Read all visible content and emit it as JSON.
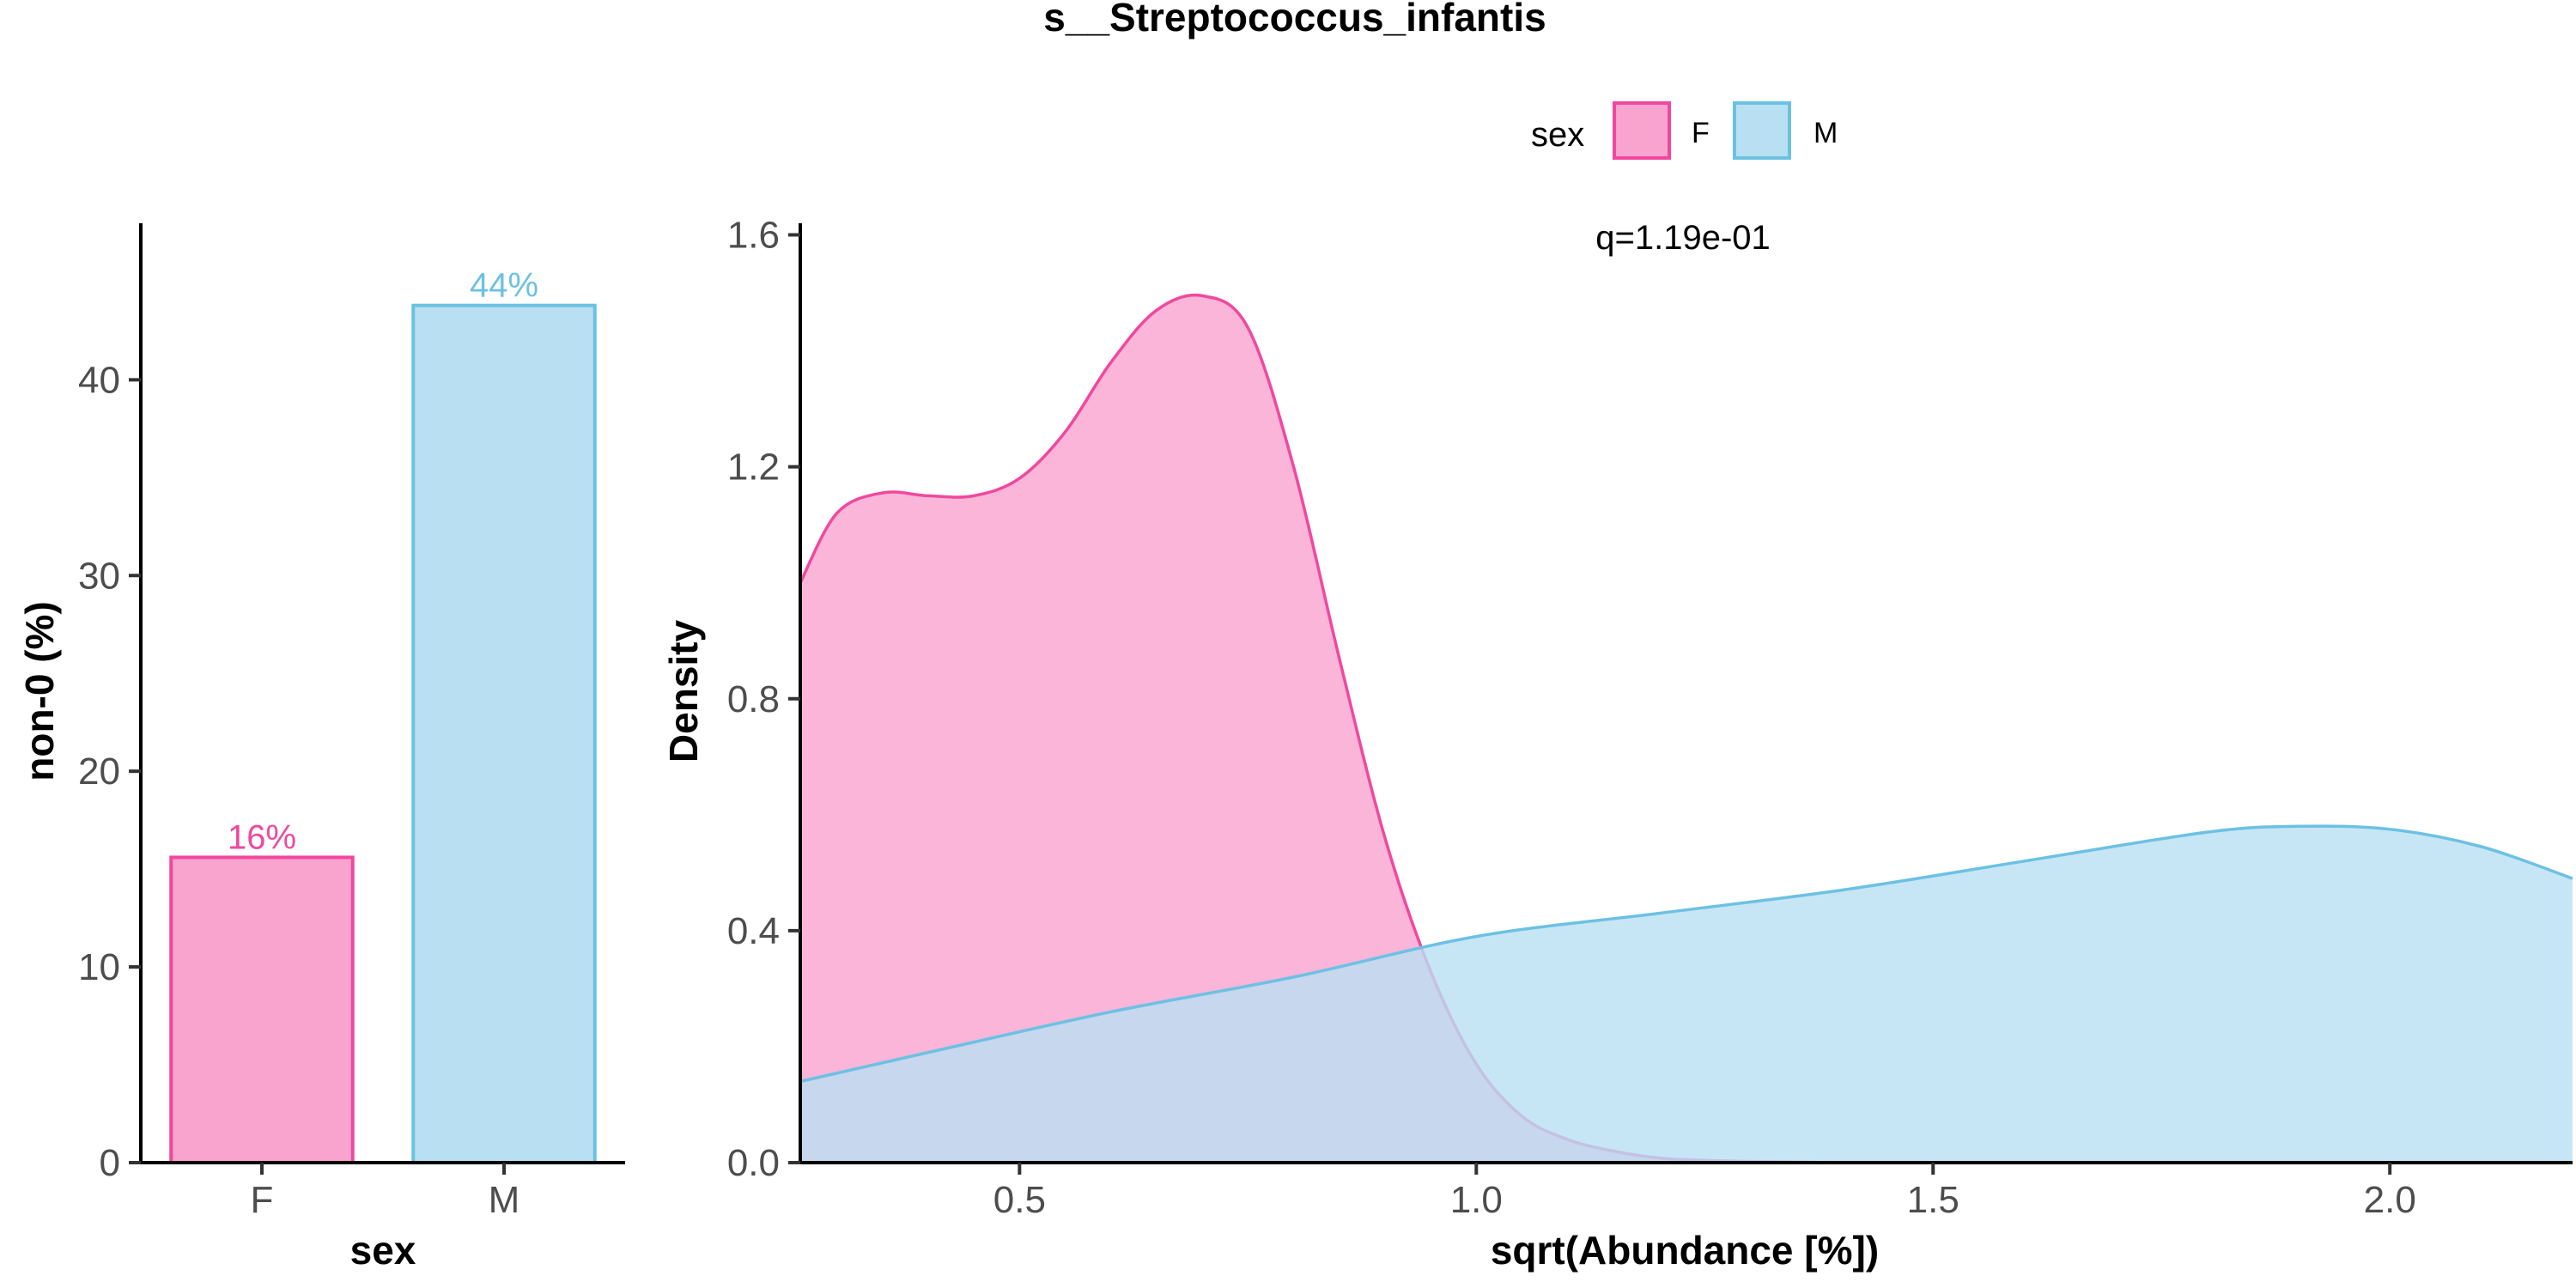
{
  "chart_data": {
    "title": "s__Streptococcus_infantis",
    "legend": {
      "title": "sex",
      "placement": "top",
      "entries": [
        {
          "label": "F",
          "fill": "#F9A3CF",
          "stroke": "#F0489E"
        },
        {
          "label": "M",
          "fill": "#B9E0F2",
          "stroke": "#6CC1E3"
        }
      ]
    },
    "annotation": "q=1.19e-01",
    "panels": [
      {
        "type": "bar",
        "xlabel": "sex",
        "ylabel": "non-0 (%)",
        "categories": [
          "F",
          "M"
        ],
        "values": [
          15.6,
          43.8
        ],
        "data_labels": [
          "16%",
          "44%"
        ],
        "ylim": [
          0,
          48
        ],
        "yticks": [
          0,
          10,
          20,
          30,
          40
        ],
        "ytick_labels": [
          "0",
          "10",
          "20",
          "30",
          "40"
        ],
        "grid": false
      },
      {
        "type": "area",
        "xlabel": "sqrt(Abundance [%])",
        "ylabel": "Density",
        "xlim": [
          0.26,
          2.2
        ],
        "ylim": [
          0,
          1.62
        ],
        "xticks": [
          0.5,
          1.0,
          1.5,
          2.0
        ],
        "xtick_labels": [
          "0.5",
          "1.0",
          "1.5",
          "2.0"
        ],
        "yticks": [
          0.0,
          0.4,
          0.8,
          1.2,
          1.6
        ],
        "ytick_labels": [
          "0.0",
          "0.4",
          "0.8",
          "1.2",
          "1.6"
        ],
        "grid": false,
        "series": [
          {
            "name": "F",
            "x": [
              0.26,
              0.3,
              0.35,
              0.4,
              0.45,
              0.5,
              0.55,
              0.6,
              0.65,
              0.7,
              0.75,
              0.8,
              0.85,
              0.9,
              0.95,
              1.0,
              1.05,
              1.1,
              1.15,
              1.2,
              1.25,
              1.3,
              1.35,
              1.4
            ],
            "y": [
              1.0,
              1.12,
              1.155,
              1.15,
              1.15,
              1.18,
              1.26,
              1.38,
              1.47,
              1.495,
              1.44,
              1.2,
              0.87,
              0.56,
              0.33,
              0.17,
              0.08,
              0.04,
              0.02,
              0.008,
              0.004,
              0.002,
              0.001,
              0.0
            ]
          },
          {
            "name": "M",
            "x": [
              0.26,
              0.4,
              0.6,
              0.8,
              1.0,
              1.2,
              1.4,
              1.6,
              1.8,
              1.9,
              2.0,
              2.1,
              2.2
            ],
            "y": [
              0.14,
              0.19,
              0.26,
              0.32,
              0.39,
              0.43,
              0.47,
              0.52,
              0.57,
              0.58,
              0.575,
              0.545,
              0.49
            ]
          }
        ]
      }
    ]
  }
}
